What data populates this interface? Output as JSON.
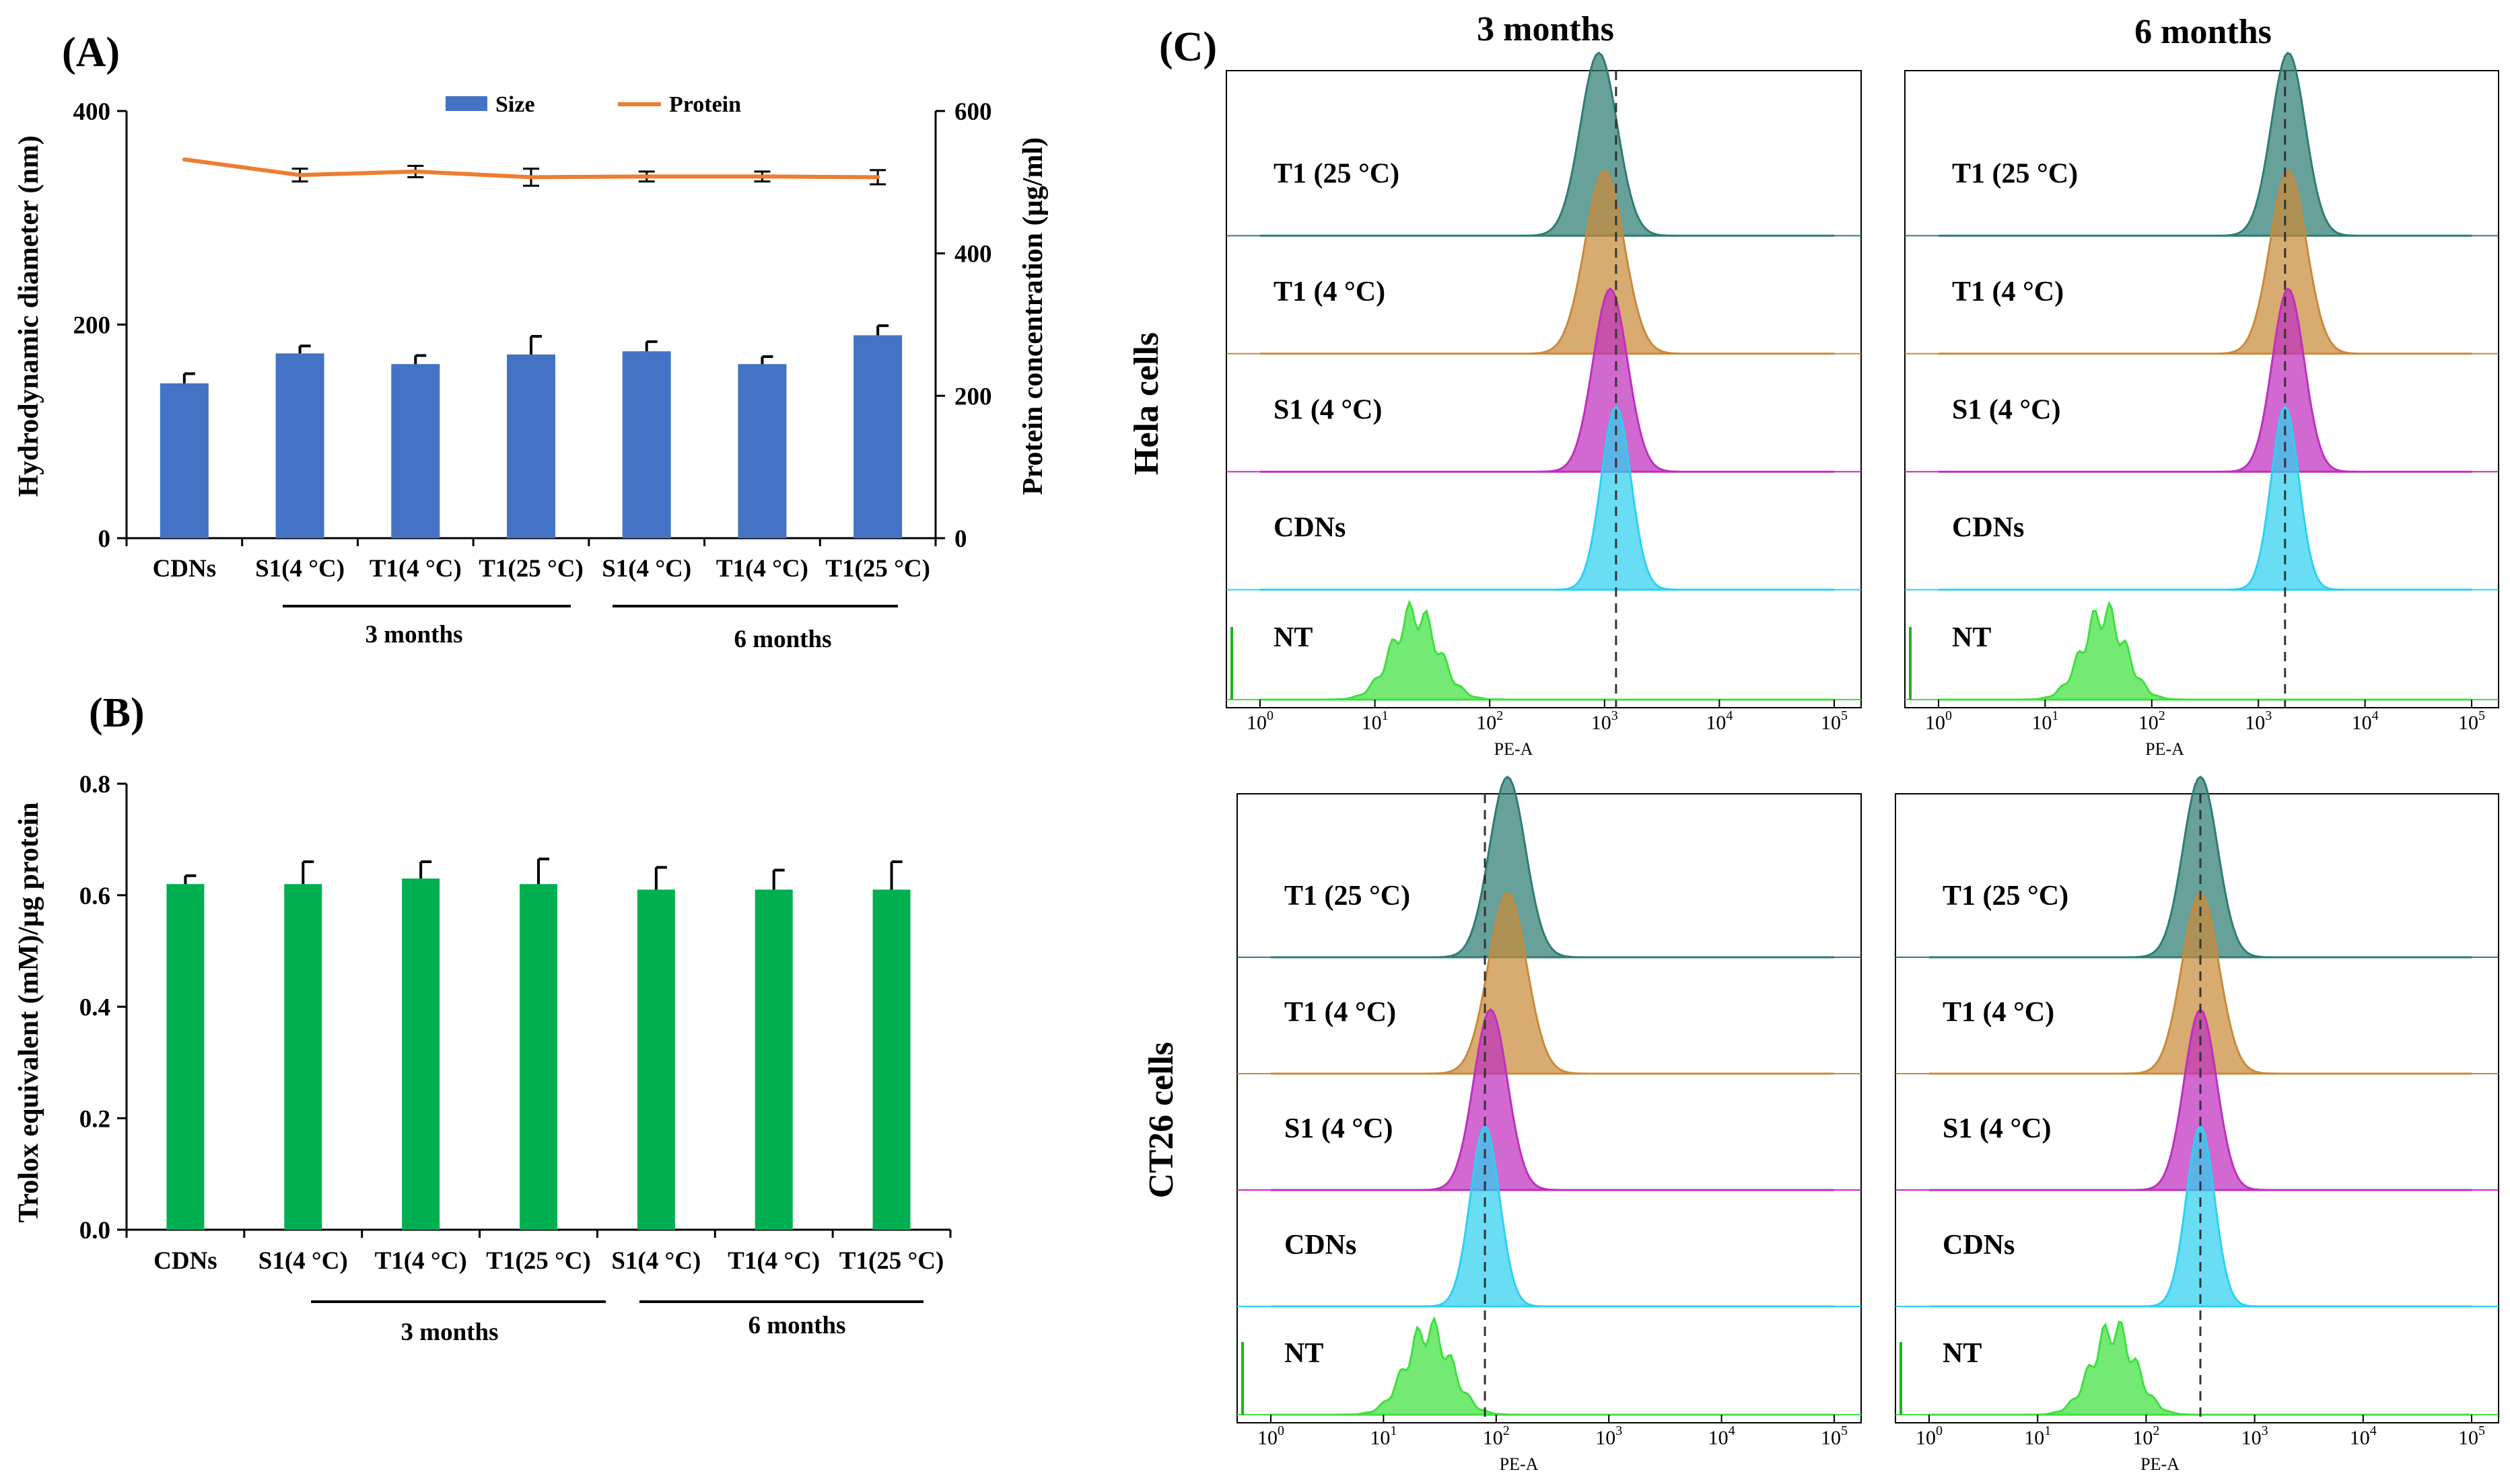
{
  "panels": {
    "A": "(A)",
    "B": "(B)",
    "C": "(C)"
  },
  "group_labels": {
    "m3": "3 months",
    "m6": "6 months"
  },
  "chart_data": [
    {
      "id": "A",
      "type": "bar",
      "categories": [
        "CDNs",
        "S1(4 °C)",
        "T1(4 °C)",
        "T1(25 °C)",
        "S1(4 °C)",
        "T1(4 °C)",
        "T1(25 °C)"
      ],
      "series": [
        {
          "name": "Size",
          "type": "bar",
          "axis": "left",
          "values": [
            145,
            173,
            163,
            172,
            175,
            163,
            190
          ],
          "errors": [
            9,
            7,
            8,
            17,
            9,
            7,
            9
          ],
          "color": "#4472C4"
        },
        {
          "name": "Protein",
          "type": "line",
          "axis": "right",
          "values": [
            532,
            510,
            515,
            507,
            508,
            508,
            507
          ],
          "errors": [
            0,
            9,
            8,
            12,
            7,
            7,
            10
          ],
          "color": "#ED7D31"
        }
      ],
      "ylabel": "Hydrodynamic  diameter (nm)",
      "ylim": [
        0,
        400
      ],
      "yticks": [
        "0",
        "200",
        "400"
      ],
      "y2label": "Protein concentration  (µg/ml)",
      "y2lim": [
        0,
        600
      ],
      "y2ticks": [
        "0",
        "200",
        "400",
        "600"
      ],
      "legend_position": "top"
    },
    {
      "id": "B",
      "type": "bar",
      "categories": [
        "CDNs",
        "S1(4 °C)",
        "T1(4 °C)",
        "T1(25 °C)",
        "S1(4 °C)",
        "T1(4 °C)",
        "T1(25 °C)"
      ],
      "series": [
        {
          "name": "Trolox equivalent",
          "values": [
            0.62,
            0.62,
            0.63,
            0.62,
            0.61,
            0.61,
            0.61
          ],
          "errors": [
            0.015,
            0.04,
            0.03,
            0.045,
            0.04,
            0.035,
            0.05
          ],
          "color": "#00B050"
        }
      ],
      "ylabel": "Trolox equivalent (mM)/µg protein",
      "ylim": [
        0,
        0.8
      ],
      "yticks": [
        "0.0",
        "0.2",
        "0.4",
        "0.6",
        "0.8"
      ]
    },
    {
      "id": "C",
      "type": "histogram-overlay",
      "columns": [
        "3 months",
        "6 months"
      ],
      "rows": [
        "Hela cells",
        "CT26 cells"
      ],
      "xlabel": "PE-A",
      "xtick_exponents": [
        "0",
        "1",
        "2",
        "3",
        "4",
        "5"
      ],
      "xtick_base": "10",
      "track_labels": [
        "T1 (25 °C)",
        "T1 (4 °C)",
        "S1 (4 °C)",
        "CDNs",
        "NT"
      ],
      "track_colors": [
        "#2E7D73",
        "#C98A3A",
        "#BF2FBF",
        "#2FD0F0",
        "#3FE03F"
      ],
      "peaks_log10": {
        "hela_3m": [
          2.95,
          3.0,
          3.05,
          3.1,
          1.35
        ],
        "hela_6m": [
          3.28,
          3.28,
          3.28,
          3.25,
          1.55
        ],
        "ct26_3m": [
          2.1,
          2.1,
          1.95,
          1.9,
          1.4
        ],
        "ct26_6m": [
          2.5,
          2.5,
          2.5,
          2.5,
          1.7
        ]
      }
    }
  ]
}
